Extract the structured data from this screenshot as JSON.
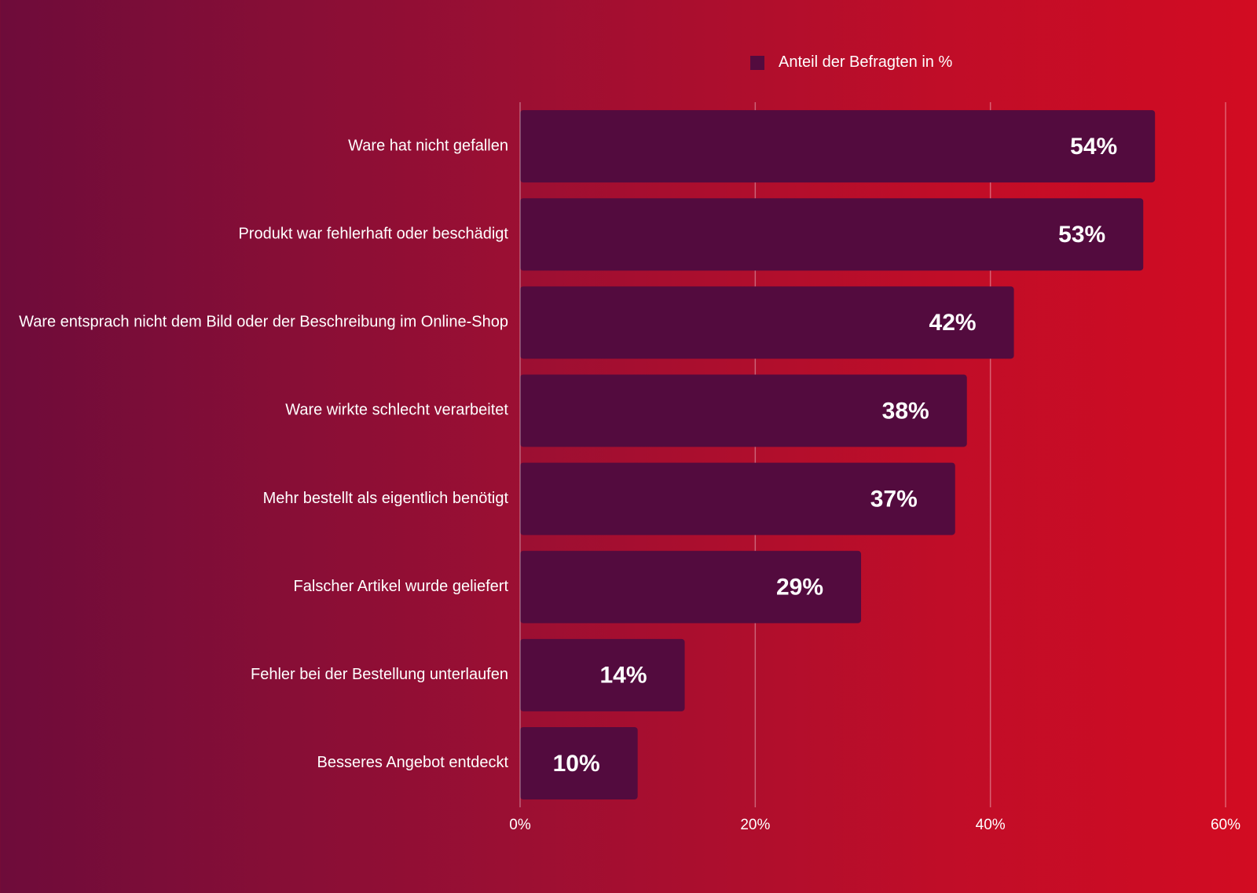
{
  "chart_data": {
    "type": "bar",
    "orientation": "horizontal",
    "categories": [
      "Ware hat nicht gefallen",
      "Produkt war fehlerhaft oder beschädigt",
      "Ware entsprach nicht dem Bild oder der Beschreibung im Online-Shop",
      "Ware wirkte schlecht verarbeitet",
      "Mehr bestellt als eigentlich benötigt",
      "Falscher Artikel wurde geliefert",
      "Fehler bei der Bestellung unterlaufen",
      "Besseres Angebot entdeckt"
    ],
    "series": [
      {
        "name": "Anteil der Befragten in %",
        "values": [
          54,
          53,
          42,
          38,
          37,
          29,
          14,
          10
        ],
        "data_labels": [
          "54%",
          "53%",
          "42%",
          "38%",
          "37%",
          "29%",
          "14%",
          "10%"
        ]
      }
    ],
    "x_ticks": [
      0,
      20,
      40,
      60
    ],
    "x_tick_labels": [
      "0%",
      "20%",
      "40%",
      "60%"
    ],
    "xlim": [
      0,
      60
    ],
    "grid": "vertical",
    "legend_position": "top",
    "colors": {
      "bar": "#530b3e",
      "text": "#ffffff",
      "grid": "rgba(255,255,255,0.35)",
      "background_start": "#6e0c3a",
      "background_end": "#d20c22"
    }
  }
}
